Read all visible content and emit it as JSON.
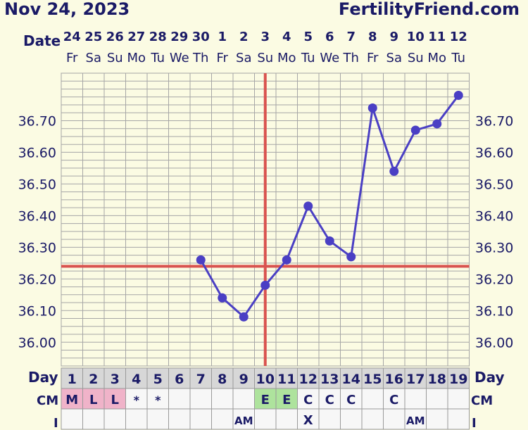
{
  "header": {
    "date": "Nov 24, 2023",
    "site": "FertilityFriend.com"
  },
  "labels": {
    "date_row": "Date",
    "day_row_left": "Day",
    "day_row_right": "Day",
    "cm_row_left": "CM",
    "cm_row_right": "CM",
    "i_row_left": "I",
    "i_row_right": "I"
  },
  "chart_data": {
    "type": "line",
    "dates": [
      "24",
      "25",
      "26",
      "27",
      "28",
      "29",
      "30",
      "1",
      "2",
      "3",
      "4",
      "5",
      "6",
      "7",
      "8",
      "9",
      "10",
      "11",
      "12"
    ],
    "weekdays": [
      "Fr",
      "Sa",
      "Su",
      "Mo",
      "Tu",
      "We",
      "Th",
      "Fr",
      "Sa",
      "Su",
      "Mo",
      "Tu",
      "We",
      "Th",
      "Fr",
      "Sa",
      "Su",
      "Mo",
      "Tu"
    ],
    "cycle_days": [
      "1",
      "2",
      "3",
      "4",
      "5",
      "6",
      "7",
      "8",
      "9",
      "10",
      "11",
      "12",
      "13",
      "14",
      "15",
      "16",
      "17",
      "18",
      "19"
    ],
    "temperatures": [
      null,
      null,
      null,
      null,
      null,
      null,
      36.26,
      36.14,
      36.08,
      36.18,
      36.26,
      36.43,
      36.32,
      36.27,
      36.74,
      36.54,
      36.67,
      36.69,
      36.78
    ],
    "y_ticks": [
      "36.70",
      "36.60",
      "36.50",
      "36.40",
      "36.30",
      "36.20",
      "36.10",
      "36.00"
    ],
    "ylim": [
      35.925,
      36.85
    ],
    "coverline": 36.24,
    "ovulation_day": "10",
    "cm": [
      "M",
      "L",
      "L",
      "*",
      "*",
      "",
      "",
      "",
      "",
      "E",
      "E",
      "C",
      "C",
      "C",
      "",
      "C",
      "",
      "",
      ""
    ],
    "cm_colors": [
      "#f0b3c9",
      "#f0b3c9",
      "#f0b3c9",
      "",
      "",
      "",
      "",
      "",
      "",
      "#aee39d",
      "#aee39d",
      "",
      "",
      "",
      "",
      "",
      "",
      "",
      ""
    ],
    "intercourse": [
      "",
      "",
      "",
      "",
      "",
      "",
      "",
      "",
      "AM",
      "",
      "",
      "X",
      "",
      "",
      "",
      "",
      "AM",
      "",
      ""
    ],
    "colors": {
      "line": "#4a3fc4",
      "coverline": "#d9534f",
      "grid": "#a6a6a6",
      "text": "#1a1a66"
    }
  }
}
